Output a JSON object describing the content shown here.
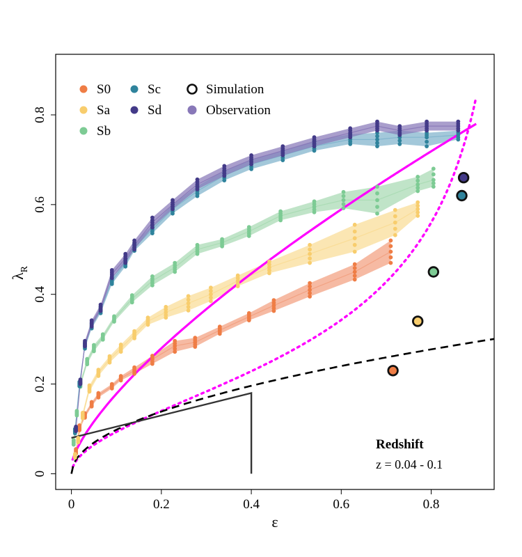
{
  "chart_data": {
    "type": "scatter",
    "xlabel": "ε",
    "ylabel_main": "λ",
    "ylabel_sub": "R",
    "xlim": [
      -0.035,
      0.94
    ],
    "ylim": [
      -0.035,
      0.935
    ],
    "xticks": [
      0,
      0.2,
      0.4,
      0.6,
      0.8
    ],
    "xtick_labels": [
      "0",
      "0.2",
      "0.4",
      "0.6",
      "0.8"
    ],
    "yticks": [
      0,
      0.2,
      0.4,
      0.6,
      0.8
    ],
    "ytick_labels": [
      "0",
      "0.2",
      "0.4",
      "0.6",
      "0.8"
    ],
    "legend_position": "top-left",
    "legend": [
      {
        "label": "S0",
        "color": "#ef7d45",
        "type": "dot"
      },
      {
        "label": "Sa",
        "color": "#f8cd6d",
        "type": "dot"
      },
      {
        "label": "Sb",
        "color": "#7dcb94",
        "type": "dot"
      },
      {
        "label": "Sc",
        "color": "#2f839c",
        "type": "dot"
      },
      {
        "label": "Sd",
        "color": "#433a88",
        "type": "dot"
      },
      {
        "label": "Simulation",
        "color": "#ffffff",
        "type": "ring"
      },
      {
        "label": "Observation",
        "color": "#8878b8",
        "type": "dot"
      }
    ],
    "series": [
      {
        "name": "S0",
        "color": "#ef7d45",
        "band_color": "#f2a080",
        "x": [
          0.01,
          0.018,
          0.03,
          0.045,
          0.06,
          0.09,
          0.11,
          0.14,
          0.18,
          0.23,
          0.275,
          0.33,
          0.395,
          0.45,
          0.53,
          0.63,
          0.71
        ],
        "y": [
          0.05,
          0.103,
          0.13,
          0.155,
          0.175,
          0.195,
          0.213,
          0.23,
          0.255,
          0.285,
          0.293,
          0.32,
          0.35,
          0.375,
          0.41,
          0.45,
          0.495
        ],
        "lo": [
          0.045,
          0.097,
          0.125,
          0.15,
          0.17,
          0.19,
          0.208,
          0.223,
          0.245,
          0.272,
          0.283,
          0.312,
          0.342,
          0.363,
          0.395,
          0.433,
          0.47
        ],
        "hi": [
          0.055,
          0.108,
          0.135,
          0.16,
          0.18,
          0.2,
          0.218,
          0.237,
          0.263,
          0.296,
          0.303,
          0.328,
          0.358,
          0.387,
          0.425,
          0.467,
          0.52
        ]
      },
      {
        "name": "Sa",
        "color": "#f8cd6d",
        "band_color": "#f9dc95",
        "x": [
          0.008,
          0.015,
          0.025,
          0.04,
          0.06,
          0.085,
          0.11,
          0.14,
          0.17,
          0.21,
          0.26,
          0.31,
          0.37,
          0.44,
          0.53,
          0.63,
          0.72,
          0.77
        ],
        "y": [
          0.04,
          0.075,
          0.13,
          0.19,
          0.225,
          0.255,
          0.28,
          0.31,
          0.34,
          0.36,
          0.38,
          0.4,
          0.43,
          0.46,
          0.49,
          0.525,
          0.56,
          0.59
        ],
        "lo": [
          0.036,
          0.07,
          0.124,
          0.183,
          0.218,
          0.248,
          0.272,
          0.302,
          0.332,
          0.348,
          0.364,
          0.385,
          0.418,
          0.447,
          0.47,
          0.495,
          0.532,
          0.575
        ],
        "hi": [
          0.044,
          0.08,
          0.136,
          0.197,
          0.232,
          0.262,
          0.288,
          0.318,
          0.348,
          0.372,
          0.396,
          0.415,
          0.442,
          0.473,
          0.51,
          0.555,
          0.588,
          0.605
        ]
      },
      {
        "name": "Sb",
        "color": "#7dcb94",
        "band_color": "#a8dab3",
        "x": [
          0.005,
          0.012,
          0.02,
          0.035,
          0.05,
          0.07,
          0.095,
          0.135,
          0.18,
          0.23,
          0.28,
          0.335,
          0.395,
          0.465,
          0.54,
          0.605,
          0.68,
          0.77,
          0.805
        ],
        "y": [
          0.07,
          0.135,
          0.2,
          0.25,
          0.28,
          0.305,
          0.345,
          0.39,
          0.43,
          0.46,
          0.5,
          0.515,
          0.54,
          0.575,
          0.595,
          0.61,
          0.61,
          0.645,
          0.655
        ],
        "lo": [
          0.065,
          0.13,
          0.194,
          0.244,
          0.273,
          0.299,
          0.339,
          0.382,
          0.42,
          0.45,
          0.49,
          0.507,
          0.53,
          0.565,
          0.583,
          0.592,
          0.58,
          0.63,
          0.64
        ],
        "hi": [
          0.075,
          0.14,
          0.206,
          0.256,
          0.287,
          0.311,
          0.351,
          0.398,
          0.44,
          0.47,
          0.51,
          0.523,
          0.55,
          0.585,
          0.607,
          0.628,
          0.64,
          0.662,
          0.68
        ]
      },
      {
        "name": "Sc",
        "color": "#2f839c",
        "band_color": "#7fb3cc",
        "x": [
          0.008,
          0.018,
          0.03,
          0.045,
          0.065,
          0.09,
          0.12,
          0.14,
          0.18,
          0.225,
          0.28,
          0.34,
          0.4,
          0.47,
          0.54,
          0.62,
          0.68,
          0.73,
          0.79,
          0.86
        ],
        "y": [
          0.095,
          0.2,
          0.285,
          0.33,
          0.365,
          0.43,
          0.47,
          0.505,
          0.545,
          0.59,
          0.63,
          0.665,
          0.69,
          0.71,
          0.73,
          0.745,
          0.745,
          0.75,
          0.75,
          0.755
        ],
        "lo": [
          0.09,
          0.195,
          0.279,
          0.324,
          0.358,
          0.423,
          0.462,
          0.497,
          0.536,
          0.58,
          0.619,
          0.654,
          0.679,
          0.699,
          0.72,
          0.735,
          0.73,
          0.735,
          0.73,
          0.745
        ],
        "hi": [
          0.1,
          0.205,
          0.291,
          0.336,
          0.372,
          0.437,
          0.478,
          0.513,
          0.554,
          0.6,
          0.641,
          0.676,
          0.701,
          0.721,
          0.742,
          0.757,
          0.76,
          0.765,
          0.76,
          0.765
        ]
      },
      {
        "name": "Sd",
        "color": "#433a88",
        "band_color": "#8878b8",
        "x": [
          0.01,
          0.02,
          0.03,
          0.045,
          0.065,
          0.09,
          0.12,
          0.14,
          0.18,
          0.225,
          0.28,
          0.34,
          0.4,
          0.47,
          0.54,
          0.62,
          0.68,
          0.73,
          0.79,
          0.86
        ],
        "y": [
          0.1,
          0.205,
          0.29,
          0.335,
          0.37,
          0.445,
          0.48,
          0.51,
          0.56,
          0.6,
          0.645,
          0.675,
          0.7,
          0.72,
          0.74,
          0.76,
          0.775,
          0.765,
          0.775,
          0.775
        ],
        "lo": [
          0.095,
          0.2,
          0.284,
          0.328,
          0.363,
          0.436,
          0.47,
          0.5,
          0.549,
          0.59,
          0.634,
          0.664,
          0.69,
          0.71,
          0.73,
          0.75,
          0.765,
          0.755,
          0.765,
          0.765
        ],
        "hi": [
          0.105,
          0.21,
          0.296,
          0.342,
          0.377,
          0.454,
          0.49,
          0.52,
          0.571,
          0.61,
          0.656,
          0.686,
          0.71,
          0.73,
          0.75,
          0.77,
          0.785,
          0.775,
          0.785,
          0.785
        ]
      }
    ],
    "simulation": [
      {
        "name": "S0",
        "x": 0.715,
        "y": 0.23,
        "color": "#ef7d45"
      },
      {
        "name": "Sa",
        "x": 0.77,
        "y": 0.34,
        "color": "#f8cd6d"
      },
      {
        "name": "Sb",
        "x": 0.805,
        "y": 0.45,
        "color": "#7dcb94"
      },
      {
        "name": "Sc",
        "x": 0.868,
        "y": 0.62,
        "color": "#2f839c"
      },
      {
        "name": "Sd",
        "x": 0.872,
        "y": 0.66,
        "color": "#433a88"
      }
    ],
    "curves": [
      {
        "name": "magenta-dotted",
        "style": "dotted",
        "color": "#ff00ff",
        "formula": "k*sqrt(eps/(1-eps))",
        "k": 0.28
      },
      {
        "name": "magenta-solid",
        "style": "solid",
        "color": "#ff00ff",
        "formula": "fast-rotator boundary"
      },
      {
        "name": "black-dashed",
        "style": "dashed",
        "color": "#000000",
        "formula": "0.31*sqrt(eps)"
      }
    ],
    "region_polyline": {
      "x": [
        0,
        0.4,
        0.4
      ],
      "y": [
        0.08,
        0.18,
        0.0
      ],
      "color": "#333333"
    },
    "annotation": {
      "title": "Redshift",
      "subtitle": "z = 0.04 - 0.1"
    }
  }
}
